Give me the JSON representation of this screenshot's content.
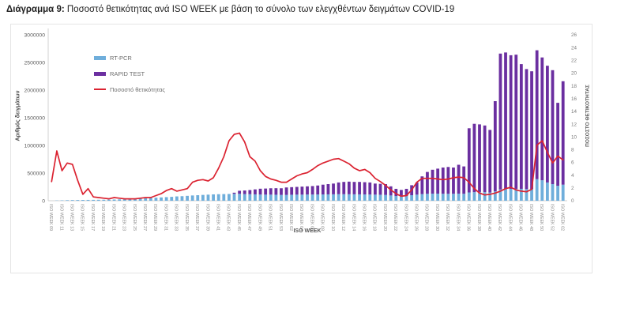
{
  "page": {
    "title_bold": "Διάγραμμα 9:",
    "title_rest": " Ποσοστό θετικότητας ανά ISO WEEK με βάση το σύνολο των ελεγχθέντων δειγμάτων COVID-19"
  },
  "chart": {
    "left_axis_title": "Αριθμός δειγμάτων",
    "right_axis_title": "ΠΟΣΟΣΤΟ ΘΕΤΙΚΟΤΗΤΑΣ",
    "x_axis_title": "ISO WEEK",
    "colors": {
      "rtpcr": "#6FAEDB",
      "rapid": "#6B2FA0",
      "positivity": "#DB2331",
      "tick_text": "#7a7a7a",
      "axis_line": "#d0d0d0"
    }
  },
  "chart_data": {
    "type": "bar",
    "subtype": "stacked-bars-with-line",
    "title": "Ποσοστό θετικότητας ανά ISO WEEK με βάση το σύνολο των ελεγχθέντων δειγμάτων COVID-19",
    "xlabel": "ISO WEEK",
    "ylabel_left": "Αριθμός δειγμάτων",
    "ylabel_right": "ΠΟΣΟΣΤΟ ΘΕΤΙΚΟΤΗΤΑΣ",
    "left_axis": {
      "min": 0,
      "max": 3000000,
      "ticks": [
        0,
        500000,
        1000000,
        1500000,
        2000000,
        2500000,
        3000000
      ]
    },
    "right_axis": {
      "min": 0,
      "max": 26,
      "ticks": [
        0,
        2,
        4,
        6,
        8,
        10,
        12,
        14,
        16,
        18,
        20,
        22,
        24,
        26
      ]
    },
    "grid": false,
    "legend_position": "top-left-inside",
    "x_tick_every": 2,
    "categories": [
      "ISO WEEK 09",
      "ISO WEEK 10",
      "ISO WEEK 11",
      "ISO WEEK 12",
      "ISO WEEK 13",
      "ISO WEEK 14",
      "ISO WEEK 15",
      "ISO WEEK 16",
      "ISO WEEK 17",
      "ISO WEEK 18",
      "ISO WEEK 19",
      "ISO WEEK 20",
      "ISO WEEK 21",
      "ISO WEEK 22",
      "ISO WEEK 23",
      "ISO WEEK 24",
      "ISO WEEK 25",
      "ISO WEEK 26",
      "ISO WEEK 27",
      "ISO WEEK 28",
      "ISO WEEK 29",
      "ISO WEEK 30",
      "ISO WEEK 31",
      "ISO WEEK 32",
      "ISO WEEK 33",
      "ISO WEEK 34",
      "ISO WEEK 35",
      "ISO WEEK 36",
      "ISO WEEK 37",
      "ISO WEEK 38",
      "ISO WEEK 39",
      "ISO WEEK 40",
      "ISO WEEK 41",
      "ISO WEEK 42",
      "ISO WEEK 43",
      "ISO WEEK 44",
      "ISO WEEK 45",
      "ISO WEEK 46",
      "ISO WEEK 47",
      "ISO WEEK 48",
      "ISO WEEK 49",
      "ISO WEEK 50",
      "ISO WEEK 51",
      "ISO WEEK 52",
      "ISO WEEK 53",
      "ISO WEEK 01",
      "ISO WEEK 02",
      "ISO WEEK 03",
      "ISO WEEK 04",
      "ISO WEEK 05",
      "ISO WEEK 06",
      "ISO WEEK 07",
      "ISO WEEK 08",
      "ISO WEEK 09",
      "ISO WEEK 10",
      "ISO WEEK 11",
      "ISO WEEK 12",
      "ISO WEEK 13",
      "ISO WEEK 14",
      "ISO WEEK 15",
      "ISO WEEK 16",
      "ISO WEEK 17",
      "ISO WEEK 18",
      "ISO WEEK 19",
      "ISO WEEK 20",
      "ISO WEEK 21",
      "ISO WEEK 22",
      "ISO WEEK 23",
      "ISO WEEK 24",
      "ISO WEEK 25",
      "ISO WEEK 26",
      "ISO WEEK 27",
      "ISO WEEK 28",
      "ISO WEEK 29",
      "ISO WEEK 30",
      "ISO WEEK 31",
      "ISO WEEK 32",
      "ISO WEEK 33",
      "ISO WEEK 34",
      "ISO WEEK 35",
      "ISO WEEK 36",
      "ISO WEEK 37",
      "ISO WEEK 38",
      "ISO WEEK 39",
      "ISO WEEK 40",
      "ISO WEEK 41",
      "ISO WEEK 42",
      "ISO WEEK 43",
      "ISO WEEK 44",
      "ISO WEEK 45",
      "ISO WEEK 46",
      "ISO WEEK 47",
      "ISO WEEK 48",
      "ISO WEEK 49",
      "ISO WEEK 50",
      "ISO WEEK 51",
      "ISO WEEK 52",
      "ISO WEEK 01",
      "ISO WEEK 02"
    ],
    "series": [
      {
        "name": "RT-PCR",
        "type": "bar",
        "axis": "left",
        "color": "#6FAEDB",
        "values": [
          2000,
          4000,
          7000,
          10000,
          12000,
          13000,
          14000,
          15000,
          16000,
          17000,
          18000,
          20000,
          22000,
          25000,
          30000,
          35000,
          38000,
          40000,
          45000,
          50000,
          55000,
          60000,
          65000,
          70000,
          78000,
          82000,
          88000,
          95000,
          100000,
          105000,
          110000,
          115000,
          118000,
          120000,
          122000,
          125000,
          125000,
          120000,
          118000,
          115000,
          112000,
          110000,
          110000,
          108000,
          105000,
          105000,
          108000,
          110000,
          110000,
          112000,
          112000,
          113000,
          114000,
          115000,
          116000,
          118000,
          118000,
          117000,
          116000,
          115000,
          114000,
          112000,
          110000,
          108000,
          105000,
          95000,
          85000,
          80000,
          85000,
          100000,
          110000,
          120000,
          125000,
          128000,
          128000,
          126000,
          125000,
          126000,
          128000,
          126000,
          150000,
          155000,
          158000,
          155000,
          150000,
          170000,
          205000,
          215000,
          215000,
          215000,
          215000,
          210000,
          210000,
          390000,
          370000,
          330000,
          300000,
          270000,
          290000
        ]
      },
      {
        "name": "RAPID TEST",
        "type": "bar",
        "axis": "left",
        "color": "#6B2FA0",
        "values": [
          0,
          0,
          0,
          0,
          0,
          0,
          0,
          0,
          0,
          0,
          0,
          0,
          0,
          0,
          0,
          0,
          0,
          0,
          0,
          0,
          0,
          0,
          0,
          0,
          0,
          0,
          0,
          0,
          0,
          0,
          0,
          0,
          0,
          0,
          0,
          20000,
          55000,
          65000,
          75000,
          90000,
          105000,
          110000,
          115000,
          118000,
          120000,
          135000,
          137000,
          140000,
          145000,
          148000,
          153000,
          162000,
          176000,
          185000,
          194000,
          212000,
          222000,
          228000,
          224000,
          225000,
          221000,
          218000,
          200000,
          197000,
          195000,
          165000,
          130000,
          115000,
          130000,
          180000,
          220000,
          320000,
          395000,
          432000,
          452000,
          474000,
          485000,
          474000,
          522000,
          494000,
          1160000,
          1235000,
          1222000,
          1205000,
          1130000,
          1630000,
          2455000,
          2465000,
          2415000,
          2425000,
          2255000,
          2170000,
          2130000,
          2330000,
          2220000,
          2110000,
          2060000,
          1500000,
          1870000
        ]
      },
      {
        "name": "Ποσοστό θετικότητας",
        "type": "line",
        "axis": "right",
        "color": "#DB2331",
        "values": [
          3.0,
          7.8,
          4.7,
          5.9,
          5.7,
          3.2,
          1.0,
          1.9,
          0.6,
          0.5,
          0.4,
          0.3,
          0.5,
          0.4,
          0.3,
          0.3,
          0.3,
          0.4,
          0.5,
          0.5,
          0.8,
          1.1,
          1.6,
          1.9,
          1.5,
          1.7,
          1.9,
          2.9,
          3.2,
          3.3,
          3.1,
          3.6,
          5.1,
          6.9,
          9.4,
          10.4,
          10.6,
          9.2,
          6.9,
          6.2,
          4.7,
          3.8,
          3.4,
          3.2,
          2.9,
          2.9,
          3.4,
          3.9,
          4.2,
          4.4,
          4.9,
          5.5,
          5.9,
          6.2,
          6.5,
          6.6,
          6.2,
          5.8,
          5.1,
          4.7,
          4.9,
          4.4,
          3.5,
          3.0,
          2.4,
          1.7,
          1.1,
          0.7,
          0.8,
          1.7,
          2.9,
          3.5,
          3.5,
          3.5,
          3.4,
          3.3,
          3.4,
          3.6,
          3.7,
          3.6,
          2.9,
          1.9,
          1.2,
          0.9,
          1.0,
          1.2,
          1.5,
          1.9,
          2.1,
          1.7,
          1.5,
          1.4,
          1.8,
          8.7,
          9.4,
          7.6,
          5.9,
          7.0,
          6.4
        ]
      }
    ]
  }
}
